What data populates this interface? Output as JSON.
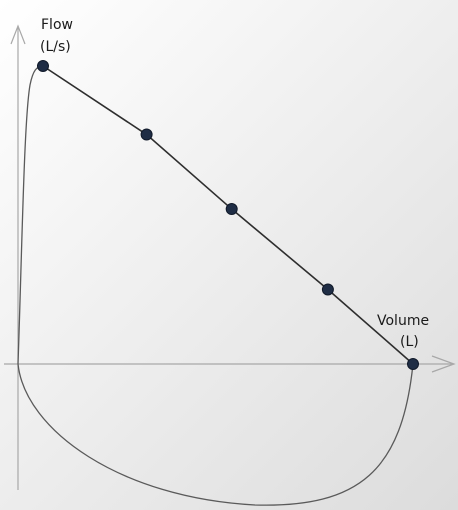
{
  "chart_data": {
    "type": "line",
    "title": "",
    "xlabel": "Volume",
    "xunit": "(L)",
    "ylabel": "Flow",
    "yunit": "(L/s)",
    "grid": false,
    "legend": "none",
    "axis_color": "#a8a8a8",
    "marker_color": "#1f2d45",
    "series": [
      {
        "values_x": [
          0.0,
          0.28,
          0.51,
          0.77,
          1.0
        ],
        "values_y": [
          1.0,
          0.77,
          0.52,
          0.25,
          0.0
        ]
      }
    ]
  }
}
